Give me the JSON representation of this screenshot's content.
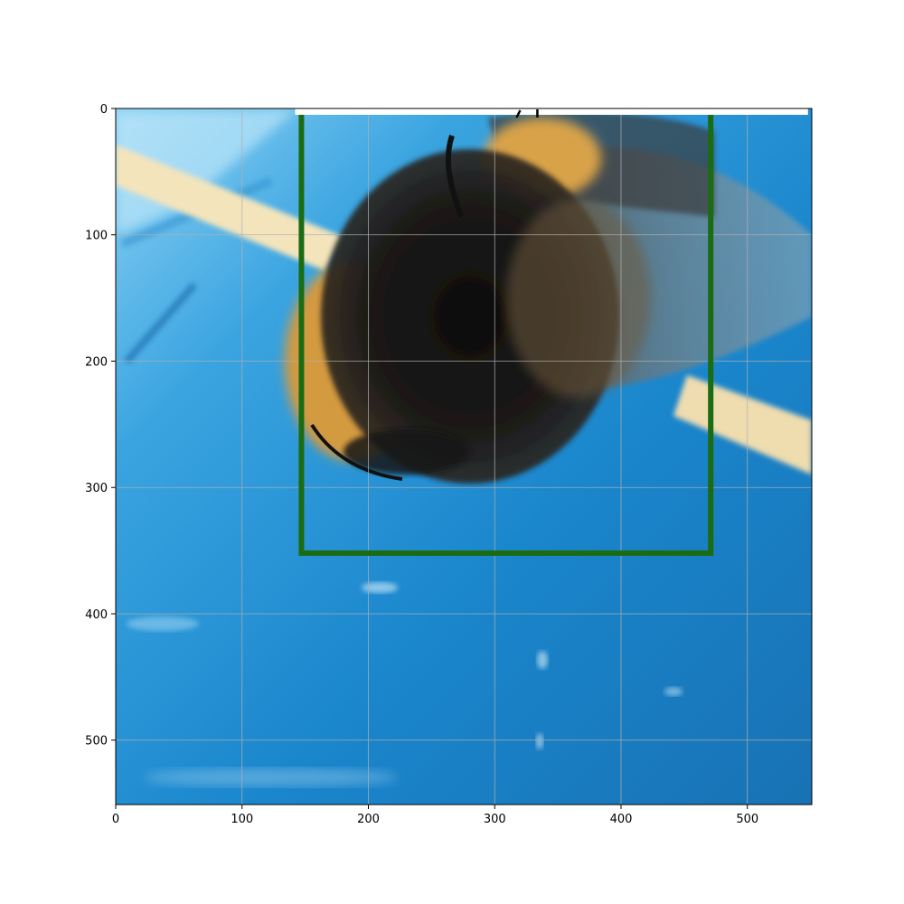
{
  "figure": {
    "image_extent": {
      "x": [
        0,
        551
      ],
      "y": [
        551,
        0
      ]
    },
    "y_axis_inverted": true,
    "grid": true
  },
  "chart_data": {
    "type": "image-with-annotation",
    "x_ticks": [
      0,
      100,
      200,
      300,
      400,
      500
    ],
    "y_ticks": [
      0,
      100,
      200,
      300,
      400,
      500
    ],
    "xlim": [
      0,
      551
    ],
    "ylim": [
      551,
      0
    ],
    "grid": true,
    "annotation_box": {
      "x_min": 147,
      "x_max": 471,
      "y_min": 5,
      "y_max": 352,
      "color": "#1b6b12"
    },
    "top_label_bar": {
      "x_min": 142,
      "x_max": 548,
      "color": "#ffffff"
    },
    "colors": {
      "water_blue": "#1f86cc",
      "water_light": "#6fc0ea",
      "bee_dark": "#141414",
      "bee_yellow": "#d49a3a",
      "stick": "#f2e2b8",
      "grid": "#b0b0b0"
    }
  }
}
